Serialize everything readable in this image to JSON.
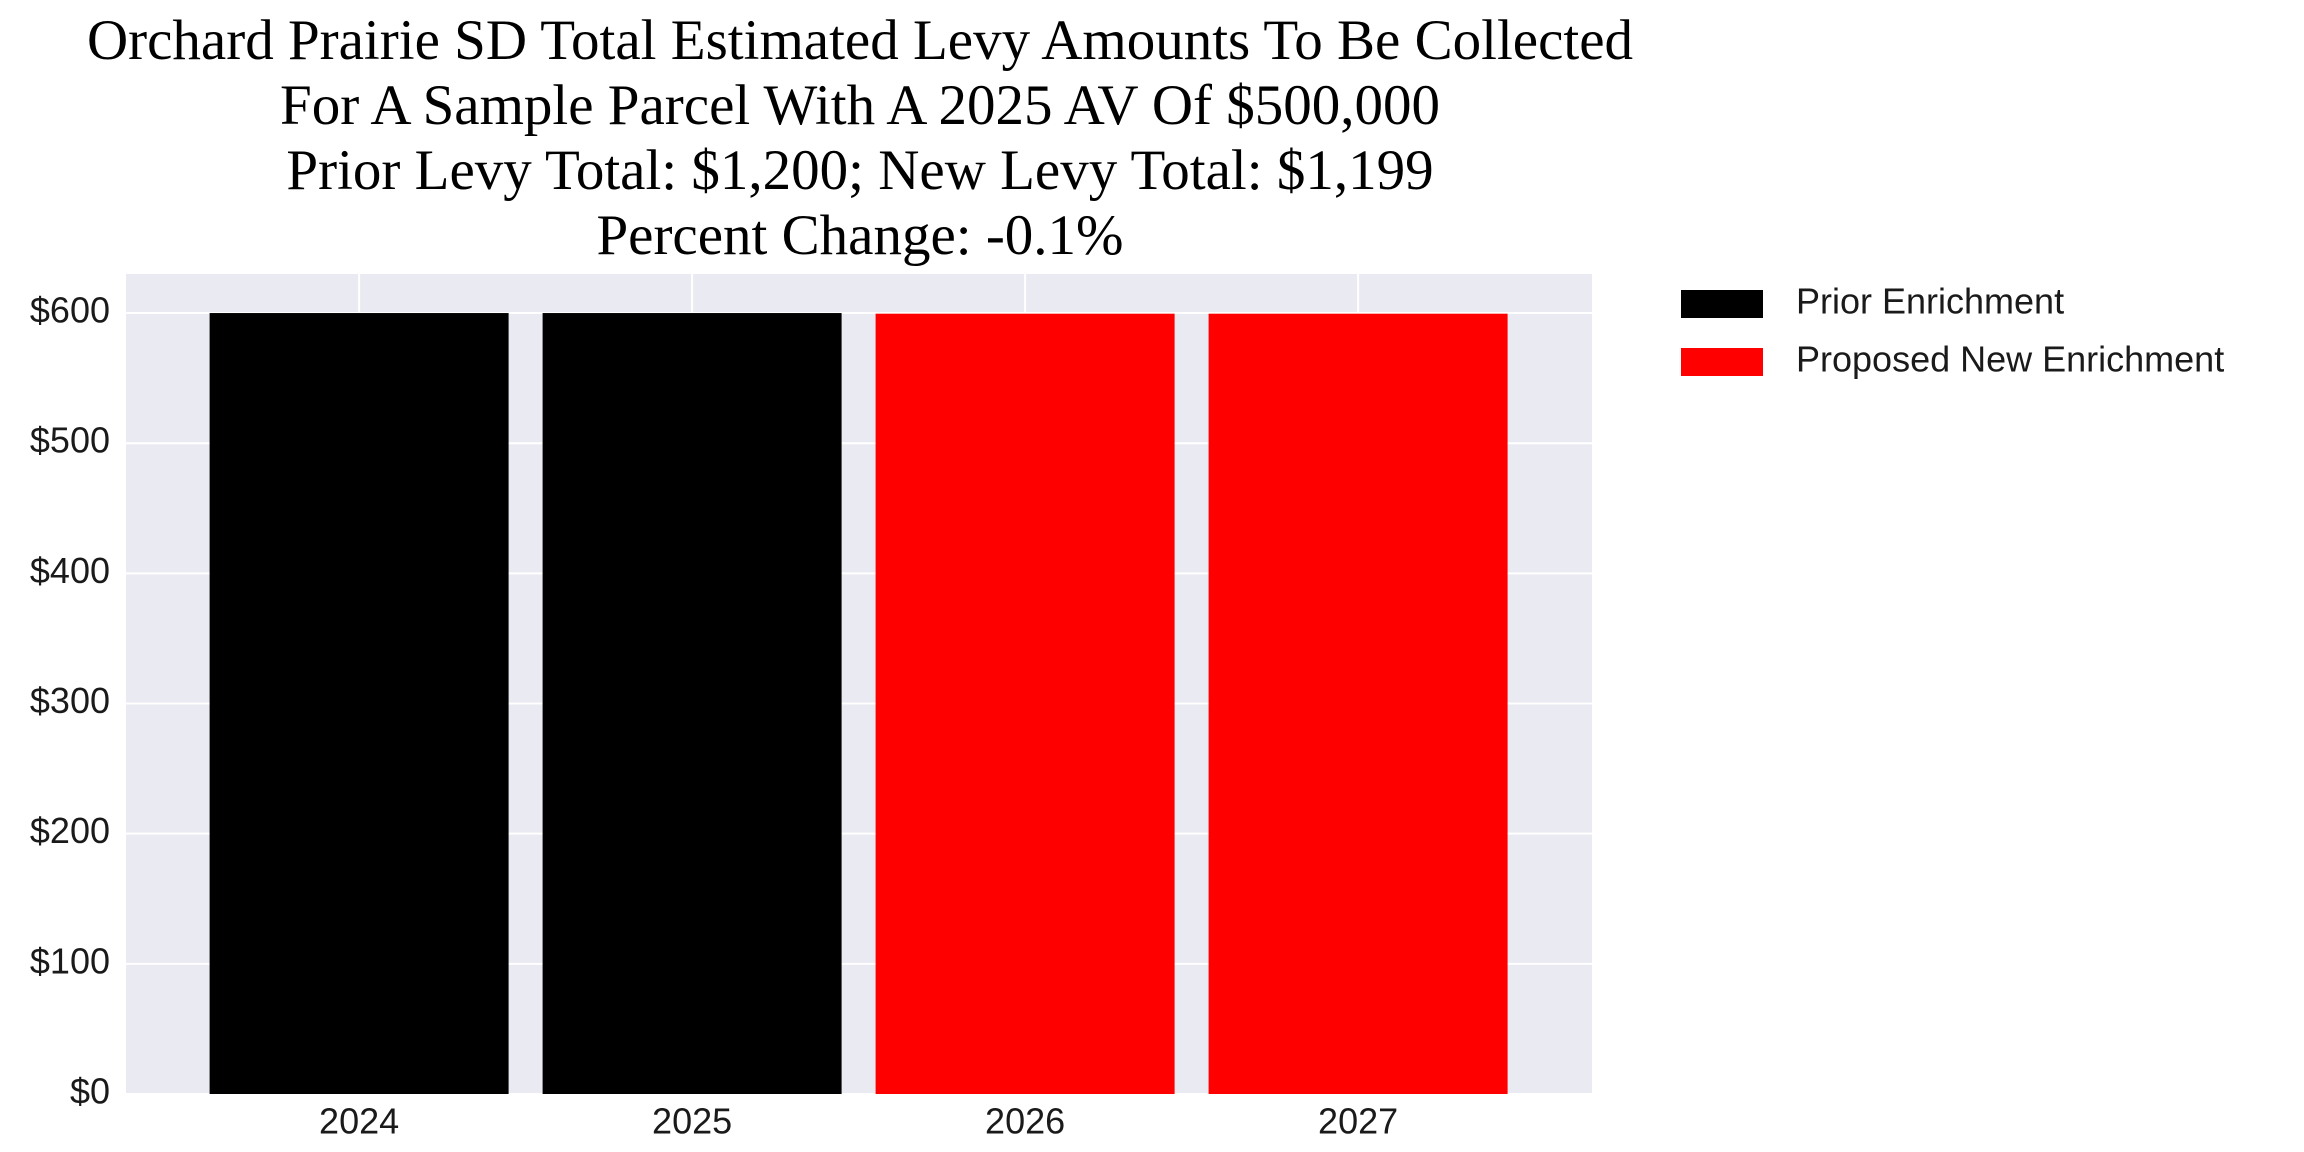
{
  "chart_data": {
    "type": "bar",
    "title": [
      "Orchard Prairie SD Total Estimated Levy Amounts To Be Collected",
      "For A Sample Parcel With A 2025 AV Of $500,000",
      "Prior Levy Total:  $1,200; New Levy Total: $1,199",
      "Percent Change: -0.1%"
    ],
    "categories": [
      "2024",
      "2025",
      "2026",
      "2027"
    ],
    "series": [
      {
        "name": "Prior Enrichment",
        "color": "#000000",
        "values": [
          600,
          600,
          null,
          null
        ]
      },
      {
        "name": "Proposed New Enrichment",
        "color": "#ff0000",
        "values": [
          null,
          null,
          599.5,
          599.5
        ]
      }
    ],
    "ylim": [
      0,
      630
    ],
    "yticks": [
      {
        "value": 0,
        "label": "$0"
      },
      {
        "value": 100,
        "label": "$100"
      },
      {
        "value": 200,
        "label": "$200"
      },
      {
        "value": 300,
        "label": "$300"
      },
      {
        "value": 400,
        "label": "$400"
      },
      {
        "value": 500,
        "label": "$500"
      },
      {
        "value": 600,
        "label": "$600"
      }
    ],
    "grid": true,
    "legend": "outside-right"
  }
}
